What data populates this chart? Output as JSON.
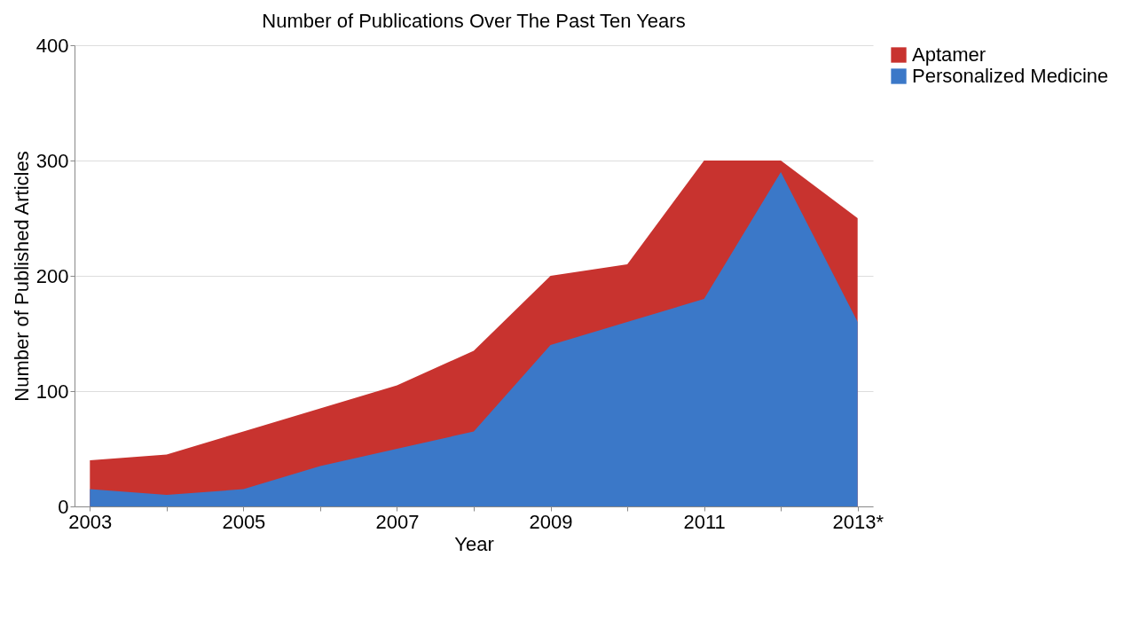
{
  "chart_data": {
    "type": "area",
    "title": "Number of Publications Over The Past Ten Years",
    "xlabel": "Year",
    "ylabel": "Number of Published Articles",
    "categories": [
      "2003",
      null,
      "2005",
      null,
      "2007",
      null,
      "2009",
      null,
      "2011",
      null,
      "2013*"
    ],
    "series": [
      {
        "name": "Aptamer",
        "color": "#c8332f",
        "values": [
          40,
          45,
          65,
          85,
          105,
          135,
          200,
          210,
          300,
          300,
          250
        ]
      },
      {
        "name": "Personalized Medicine",
        "color": "#3b78c8",
        "values": [
          15,
          10,
          15,
          35,
          50,
          65,
          140,
          160,
          180,
          290,
          160
        ]
      }
    ],
    "ylim": [
      0,
      400
    ],
    "yticks": [
      0,
      100,
      200,
      300,
      400
    ],
    "grid": "y",
    "legend": "right"
  }
}
